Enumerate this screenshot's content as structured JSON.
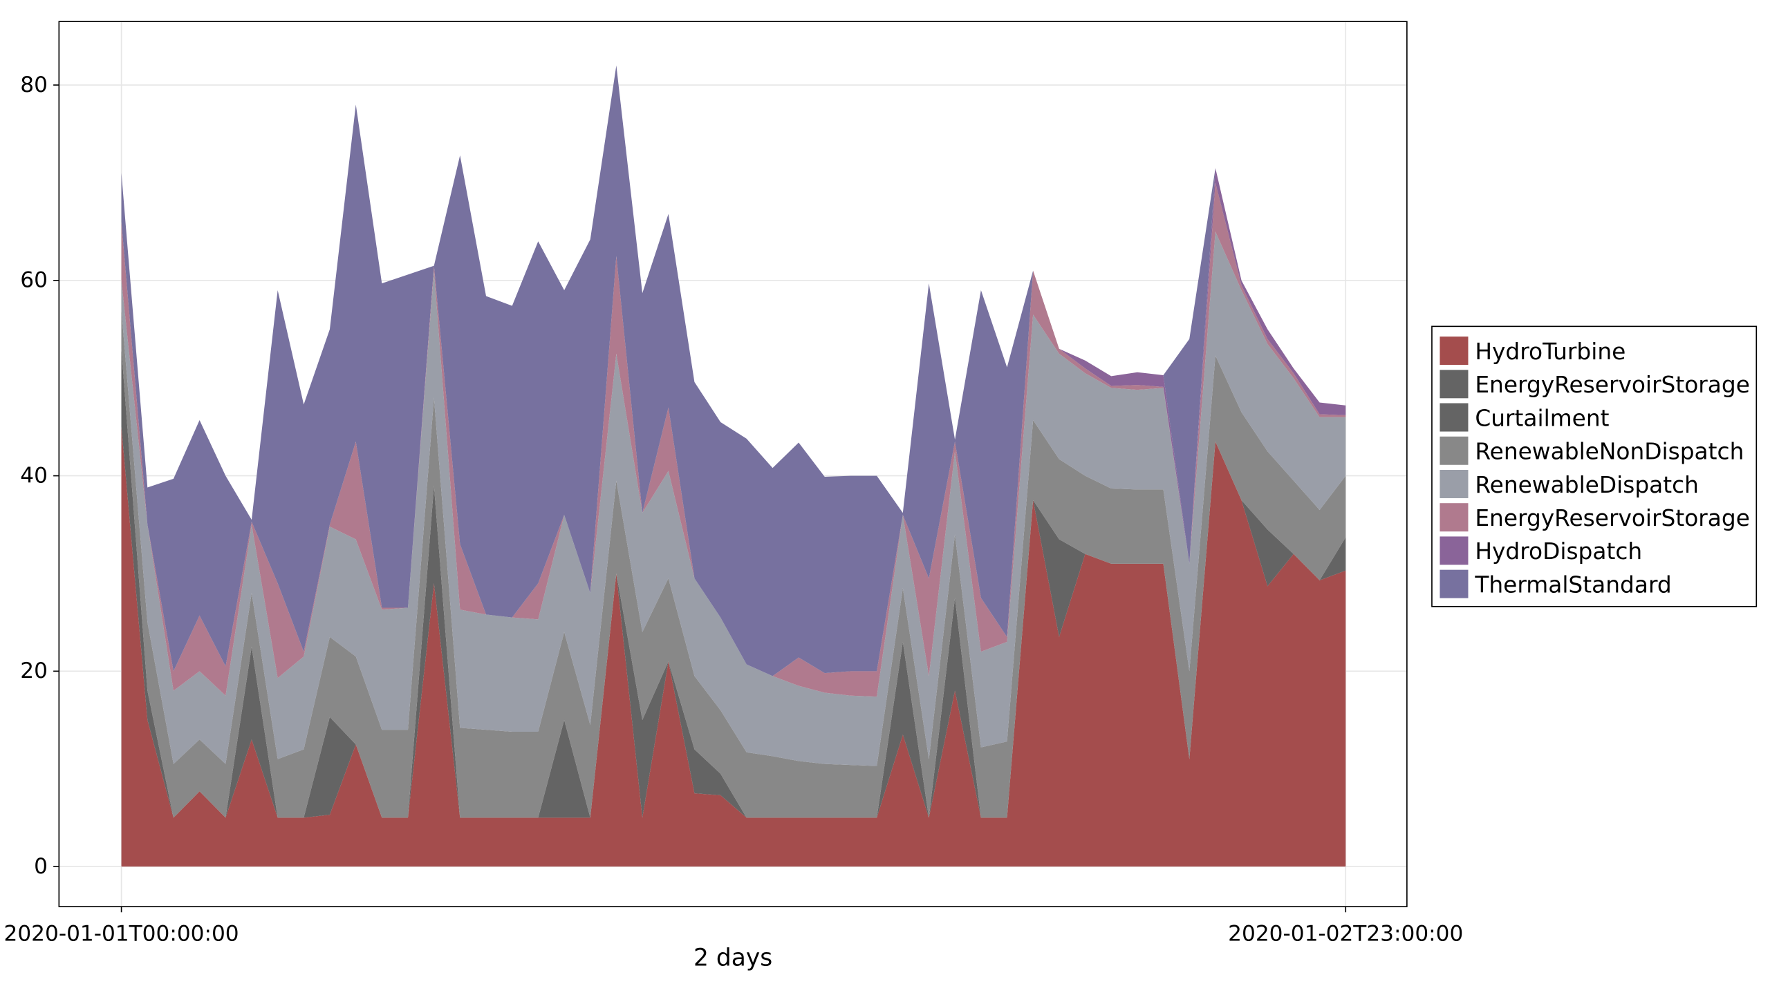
{
  "chart_data": {
    "type": "stacked_area",
    "xlabel": "2 days",
    "categories": [
      "2020-01-01T00:00:00",
      null,
      null,
      null,
      null,
      null,
      null,
      null,
      null,
      null,
      null,
      null,
      null,
      null,
      null,
      null,
      null,
      null,
      null,
      null,
      null,
      null,
      null,
      null,
      null,
      null,
      null,
      null,
      null,
      null,
      null,
      null,
      null,
      null,
      null,
      null,
      null,
      null,
      null,
      null,
      null,
      null,
      null,
      null,
      null,
      null,
      null,
      "2020-01-02T23:00:00"
    ],
    "ylim": [
      -4.1,
      86.5
    ],
    "yticks": [
      0,
      20,
      40,
      60,
      80
    ],
    "grid": true,
    "legend": "right",
    "series": [
      {
        "name": "HydroTurbine",
        "color": "#a44d4d",
        "values": [
          45,
          15,
          5,
          7.7,
          5,
          13,
          5,
          5,
          5.3,
          12.5,
          5,
          5,
          29,
          5,
          5,
          5,
          5,
          5,
          5,
          30,
          5,
          21,
          7.5,
          7.3,
          5,
          5,
          5,
          5,
          5,
          5,
          13.5,
          5,
          18,
          5,
          5,
          37.5,
          23.5,
          32,
          31,
          31,
          31,
          11,
          43.5,
          37.5,
          28.7,
          32,
          29.3,
          30.3
        ]
      },
      {
        "name": "EnergyReservoirStorage",
        "color": "#646464",
        "values": [
          8,
          3,
          0,
          0,
          0,
          9.5,
          0,
          0,
          10,
          0,
          0,
          0,
          10,
          0,
          0,
          0,
          0,
          10,
          0,
          0,
          10,
          0,
          4.5,
          2.2,
          0,
          0,
          0,
          0,
          0,
          0,
          9.5,
          0,
          9.5,
          0,
          0,
          0,
          10,
          0,
          0,
          0,
          0,
          0,
          0,
          0,
          5.8,
          0,
          0,
          3.4
        ]
      },
      {
        "name": "Curtailment",
        "color": "#646464",
        "values": [
          0,
          0,
          0,
          0,
          0,
          0,
          0,
          0,
          0,
          0,
          0,
          0,
          0,
          0,
          0,
          0,
          0,
          0,
          0,
          0,
          0,
          0,
          0,
          0,
          0,
          0,
          0,
          0,
          0,
          0,
          0,
          0,
          0,
          0,
          0,
          0,
          0,
          0,
          0,
          0,
          0,
          0,
          0,
          0,
          0,
          0,
          0,
          0
        ]
      },
      {
        "name": "RenewableNonDispatch",
        "color": "#888888",
        "values": [
          4,
          7,
          5.5,
          5.3,
          5.5,
          5.5,
          6,
          7,
          8.2,
          9,
          9,
          9,
          9,
          9.2,
          9,
          8.8,
          8.8,
          9,
          9.5,
          9.5,
          9,
          8.5,
          7.5,
          6.5,
          6.7,
          6.3,
          5.8,
          5.5,
          5.4,
          5.3,
          5.5,
          6,
          6.5,
          7.2,
          7.8,
          8.2,
          8.2,
          8,
          7.7,
          7.6,
          7.6,
          9,
          8.8,
          9,
          8,
          7.5,
          7.2,
          6.3
        ]
      },
      {
        "name": "RenewableDispatch",
        "color": "#9a9ea8",
        "values": [
          3,
          10,
          7.5,
          7,
          7,
          7,
          8.3,
          9.5,
          11.3,
          12,
          12.3,
          12.5,
          13,
          12.1,
          11.8,
          11.7,
          11.5,
          12,
          13.5,
          13,
          12.2,
          11,
          10,
          9.5,
          9,
          8.2,
          7.7,
          7.3,
          7.1,
          7.1,
          7.5,
          8.5,
          8.5,
          9.8,
          10.2,
          10.8,
          10.8,
          10.5,
          10.3,
          10.2,
          10.4,
          11,
          12.7,
          12.5,
          11,
          10.5,
          9.5,
          6
        ]
      },
      {
        "name": "EnergyReservoirStorage",
        "color": "#b07a8e",
        "values": [
          6,
          0,
          2,
          5.7,
          3,
          0.3,
          9.7,
          0.5,
          0.2,
          10,
          0.2,
          0,
          0.5,
          6.7,
          0,
          0,
          3.7,
          0,
          0,
          10,
          0,
          6.5,
          0,
          0,
          0,
          0,
          2.9,
          2,
          2.5,
          2.6,
          0,
          10,
          1,
          5.5,
          0.5,
          4.5,
          0.5,
          0.5,
          0.2,
          0.5,
          0.1,
          0,
          5,
          0.5,
          0.5,
          0.5,
          0.3,
          0.2
        ]
      },
      {
        "name": "HydroDispatch",
        "color": "#8a6499",
        "values": [
          0,
          0,
          0,
          0,
          0,
          0,
          0,
          0,
          0,
          0,
          0,
          0,
          0,
          0,
          0,
          0,
          0,
          0,
          0,
          0,
          0,
          0,
          0,
          0,
          0,
          0,
          0,
          0,
          0,
          0,
          0,
          0,
          0,
          0,
          0,
          0,
          0,
          0.8,
          1,
          1.3,
          1.2,
          0,
          1.5,
          0.5,
          1,
          0.5,
          1.2,
          1
        ]
      },
      {
        "name": "ThermalStandard",
        "color": "#77719f",
        "values": [
          5,
          3.8,
          19.7,
          20,
          19.5,
          0.2,
          30,
          25.3,
          20,
          34.5,
          33.2,
          34.1,
          0,
          39.8,
          32.6,
          31.9,
          35,
          23,
          36.2,
          19.5,
          22.5,
          19.8,
          20.1,
          20,
          23.1,
          21.3,
          22,
          20.1,
          20,
          20,
          0.2,
          30.2,
          0.2,
          31.5,
          27.6,
          0,
          0,
          0,
          0,
          0,
          0,
          23,
          0,
          0,
          0,
          0,
          0,
          0
        ]
      }
    ]
  }
}
